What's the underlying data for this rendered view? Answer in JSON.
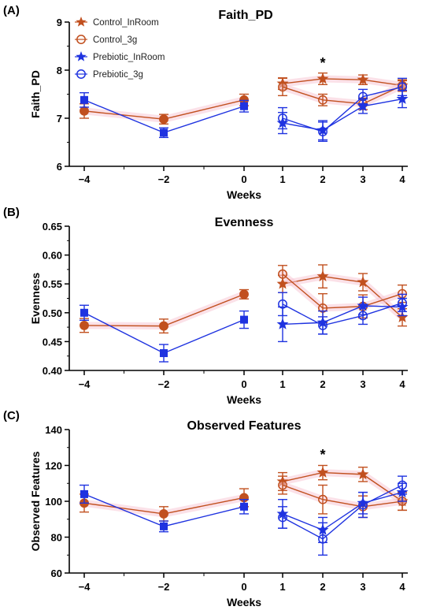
{
  "figure": {
    "series_styles": [
      {
        "name": "Control_InRoom",
        "color": "#c1501f",
        "marker": "star",
        "fill": true,
        "line": false
      },
      {
        "name": "Control_3g",
        "color": "#c1501f",
        "marker": "circle",
        "fill": false,
        "line": false
      },
      {
        "name": "Prebiotic_InRoom",
        "color": "#1f33e0",
        "marker": "star",
        "fill": true,
        "line": false
      },
      {
        "name": "Prebiotic_3g",
        "color": "#1f33e0",
        "marker": "circle",
        "fill": false,
        "line": false
      },
      {
        "name": "",
        "color": "#c1501f",
        "marker": "circle",
        "fill": true,
        "line": true
      },
      {
        "name": "",
        "color": "#1f33e0",
        "marker": "square",
        "fill": true,
        "line": true
      }
    ],
    "highlight_color": "#f7c9d6"
  },
  "chart_data": [
    {
      "type": "line",
      "panel_label": "(A)",
      "title": "Faith_PD",
      "xlabel": "Weeks",
      "ylabel": "Faith_PD",
      "ylim": [
        6,
        9
      ],
      "yticks": [
        6,
        7,
        8,
        9
      ],
      "ytick_labels": [
        "6",
        "7",
        "8",
        "9"
      ],
      "xticks": [
        -4,
        -2,
        0,
        1,
        2,
        3,
        4
      ],
      "xtick_labels": [
        "−4",
        "−2",
        "0",
        "1",
        "2",
        "3",
        "4"
      ],
      "legend": [
        "Control_InRoom",
        "Control_3g",
        "Prebiotic_InRoom",
        "Prebiotic_3g"
      ],
      "annotations": [
        {
          "text": "*",
          "x": 2
        }
      ],
      "series": [
        {
          "name": "Control_InRoom",
          "x": [
            1,
            2,
            3,
            4
          ],
          "values": [
            7.72,
            7.82,
            7.8,
            7.68
          ],
          "error": [
            0.12,
            0.12,
            0.1,
            0.12
          ],
          "connect": true
        },
        {
          "name": "Control_3g",
          "x": [
            1,
            2,
            3,
            4
          ],
          "values": [
            7.65,
            7.38,
            7.3,
            7.68
          ],
          "error": [
            0.18,
            0.12,
            0.12,
            0.1
          ],
          "connect": true
        },
        {
          "name": "Prebiotic_InRoom",
          "x": [
            1,
            2,
            3,
            4
          ],
          "values": [
            6.9,
            6.75,
            7.25,
            7.4
          ],
          "error": [
            0.22,
            0.2,
            0.15,
            0.18
          ],
          "connect": true
        },
        {
          "name": "Prebiotic_3g",
          "x": [
            1,
            2,
            3,
            4
          ],
          "values": [
            7.0,
            6.72,
            7.45,
            7.65
          ],
          "error": [
            0.22,
            0.2,
            0.15,
            0.18
          ],
          "connect": true
        },
        {
          "name": "",
          "x": [
            -4,
            -2,
            0
          ],
          "values": [
            7.15,
            6.98,
            7.38
          ],
          "error": [
            0.15,
            0.1,
            0.12
          ],
          "connect": true
        },
        {
          "name": "",
          "x": [
            -4,
            -2,
            0
          ],
          "values": [
            7.38,
            6.7,
            7.25
          ],
          "error": [
            0.15,
            0.1,
            0.12
          ],
          "connect": true
        }
      ]
    },
    {
      "type": "line",
      "panel_label": "(B)",
      "title": "Evenness",
      "xlabel": "Weeks",
      "ylabel": "Evenness",
      "ylim": [
        0.4,
        0.65
      ],
      "yticks": [
        0.4,
        0.45,
        0.5,
        0.55,
        0.6,
        0.65
      ],
      "ytick_labels": [
        "0.40",
        "0.45",
        "0.50",
        "0.55",
        "0.60",
        "0.65"
      ],
      "xticks": [
        -4,
        -2,
        0,
        1,
        2,
        3,
        4
      ],
      "xtick_labels": [
        "−4",
        "−2",
        "0",
        "1",
        "2",
        "3",
        "4"
      ],
      "legend": [],
      "annotations": [],
      "series": [
        {
          "name": "Control_InRoom",
          "x": [
            1,
            2,
            3,
            4
          ],
          "values": [
            0.55,
            0.563,
            0.553,
            0.492
          ],
          "error": [
            0.015,
            0.02,
            0.015,
            0.015
          ],
          "connect": true
        },
        {
          "name": "Control_3g",
          "x": [
            1,
            2,
            3,
            4
          ],
          "values": [
            0.567,
            0.508,
            0.511,
            0.533
          ],
          "error": [
            0.015,
            0.025,
            0.02,
            0.015
          ],
          "connect": true
        },
        {
          "name": "Prebiotic_InRoom",
          "x": [
            1,
            2,
            3,
            4
          ],
          "values": [
            0.48,
            0.483,
            0.512,
            0.51
          ],
          "error": [
            0.03,
            0.02,
            0.015,
            0.015
          ],
          "connect": true
        },
        {
          "name": "Prebiotic_3g",
          "x": [
            1,
            2,
            3,
            4
          ],
          "values": [
            0.515,
            0.478,
            0.495,
            0.517
          ],
          "error": [
            0.02,
            0.015,
            0.015,
            0.015
          ],
          "connect": true
        },
        {
          "name": "",
          "x": [
            -4,
            -2,
            0
          ],
          "values": [
            0.478,
            0.477,
            0.532
          ],
          "error": [
            0.012,
            0.012,
            0.008
          ],
          "connect": true
        },
        {
          "name": "",
          "x": [
            -4,
            -2,
            0
          ],
          "values": [
            0.5,
            0.43,
            0.488
          ],
          "error": [
            0.013,
            0.015,
            0.015
          ],
          "connect": true
        }
      ]
    },
    {
      "type": "line",
      "panel_label": "(C)",
      "title": "Observed Features",
      "xlabel": "Weeks",
      "ylabel": "Observed Features",
      "ylim": [
        60,
        140
      ],
      "yticks": [
        60,
        80,
        100,
        120,
        140
      ],
      "ytick_labels": [
        "60",
        "80",
        "100",
        "120",
        "140"
      ],
      "xticks": [
        -4,
        -2,
        0,
        1,
        2,
        3,
        4
      ],
      "xtick_labels": [
        "−4",
        "−2",
        "0",
        "1",
        "2",
        "3",
        "4"
      ],
      "legend": [],
      "annotations": [
        {
          "text": "*",
          "x": 2
        }
      ],
      "series": [
        {
          "name": "Control_InRoom",
          "x": [
            1,
            2,
            3,
            4
          ],
          "values": [
            111,
            116,
            115,
            100
          ],
          "error": [
            5,
            4,
            4,
            5
          ],
          "connect": true
        },
        {
          "name": "Control_3g",
          "x": [
            1,
            2,
            3,
            4
          ],
          "values": [
            109,
            101,
            97,
            100
          ],
          "error": [
            5,
            8,
            6,
            5
          ],
          "connect": true
        },
        {
          "name": "Prebiotic_InRoom",
          "x": [
            1,
            2,
            3,
            4
          ],
          "values": [
            93,
            84,
            99,
            105
          ],
          "error": [
            8,
            7,
            6,
            5
          ],
          "connect": true
        },
        {
          "name": "Prebiotic_3g",
          "x": [
            1,
            2,
            3,
            4
          ],
          "values": [
            91,
            79,
            98,
            109
          ],
          "error": [
            6,
            9,
            7,
            5
          ],
          "connect": true
        },
        {
          "name": "",
          "x": [
            -4,
            -2,
            0
          ],
          "values": [
            99,
            93,
            102
          ],
          "error": [
            5,
            4,
            5
          ],
          "connect": true
        },
        {
          "name": "",
          "x": [
            -4,
            -2,
            0
          ],
          "values": [
            104,
            86,
            97
          ],
          "error": [
            5,
            3,
            4
          ],
          "connect": true
        }
      ]
    }
  ]
}
